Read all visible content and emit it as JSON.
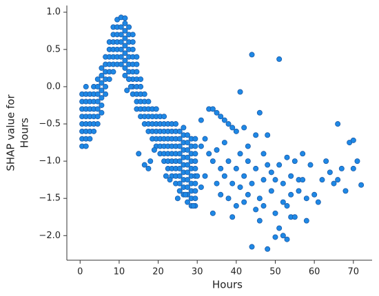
{
  "chart_data": {
    "type": "scatter",
    "xlabel": "Hours",
    "ylabel": [
      "SHAP value for",
      "Hours"
    ],
    "color": "#1e88e5",
    "edgecolor": "#1a5aa8",
    "xlim": [
      -3.4,
      74.8
    ],
    "ylim": [
      -2.33,
      1.09
    ],
    "xticks": [
      0,
      10,
      20,
      30,
      40,
      50,
      60,
      70
    ],
    "yticks": [
      {
        "value": -2.0,
        "label": "−2.0"
      },
      {
        "value": -1.5,
        "label": "−1.5"
      },
      {
        "value": -1.0,
        "label": "−1.0"
      },
      {
        "value": -0.5,
        "label": "−0.5"
      },
      {
        "value": 0.0,
        "label": "0.0"
      },
      {
        "value": 0.5,
        "label": "0.5"
      },
      {
        "value": 1.0,
        "label": "1.0"
      }
    ],
    "x": [
      0.5,
      0.5,
      0.5,
      0.5,
      0.5,
      0.5,
      0.5,
      0.5,
      1.5,
      1.5,
      1.5,
      1.5,
      1.5,
      1.5,
      1.5,
      1.5,
      1.5,
      2.5,
      2.5,
      2.5,
      2.5,
      2.5,
      2.5,
      2.5,
      3.5,
      3.5,
      3.5,
      3.5,
      3.5,
      3.5,
      3.5,
      4.5,
      4.5,
      4.5,
      4.5,
      4.5,
      4.5,
      4.5,
      5.5,
      5.5,
      5.5,
      5.5,
      5.5,
      5.5,
      5.5,
      6.5,
      6.5,
      6.5,
      6.5,
      6.5,
      6.5,
      7.5,
      7.5,
      7.5,
      7.5,
      7.5,
      7.5,
      8.5,
      8.5,
      8.5,
      8.5,
      8.5,
      8.5,
      8.5,
      9.5,
      9.5,
      9.5,
      9.5,
      9.5,
      9.5,
      9.5,
      10.5,
      10.5,
      10.5,
      10.5,
      10.5,
      10.5,
      10.5,
      11.5,
      11.5,
      11.5,
      11.5,
      11.5,
      11.5,
      11.5,
      11.5,
      12.5,
      12.5,
      12.5,
      12.5,
      12.5,
      12.5,
      12.5,
      12.5,
      13.5,
      13.5,
      13.5,
      13.5,
      13.5,
      13.5,
      13.5,
      13.5,
      13.5,
      14.5,
      14.5,
      14.5,
      14.5,
      14.5,
      14.5,
      14.5,
      14.5,
      15.5,
      15.5,
      15.5,
      15.5,
      15.5,
      15.5,
      16.5,
      16.5,
      16.5,
      16.5,
      16.5,
      17.5,
      17.5,
      17.5,
      17.5,
      17.5,
      18.5,
      18.5,
      18.5,
      18.5,
      18.5,
      19.5,
      19.5,
      19.5,
      19.5,
      19.5,
      19.5,
      20.5,
      20.5,
      20.5,
      20.5,
      20.5,
      20.5,
      21.5,
      21.5,
      21.5,
      21.5,
      21.5,
      21.5,
      21.5,
      22.5,
      22.5,
      22.5,
      22.5,
      22.5,
      22.5,
      22.5,
      23.5,
      23.5,
      23.5,
      23.5,
      23.5,
      23.5,
      23.5,
      23.5,
      24.5,
      24.5,
      24.5,
      24.5,
      24.5,
      24.5,
      24.5,
      24.5,
      24.5,
      25.5,
      25.5,
      25.5,
      25.5,
      25.5,
      25.5,
      25.5,
      25.5,
      25.5,
      26.5,
      26.5,
      26.5,
      26.5,
      26.5,
      26.5,
      26.5,
      26.5,
      26.5,
      26.5,
      27.5,
      27.5,
      27.5,
      27.5,
      27.5,
      27.5,
      27.5,
      27.5,
      27.5,
      27.5,
      28.5,
      28.5,
      28.5,
      28.5,
      28.5,
      28.5,
      28.5,
      28.5,
      28.5,
      28.5,
      29.5,
      29.5,
      29.5,
      29.5,
      29.5,
      29.5,
      29.5,
      29.5,
      29.5,
      29.5,
      11.5,
      12.5,
      13,
      12,
      15,
      16.5,
      17.5,
      18,
      19,
      22,
      23,
      25,
      27,
      29,
      44,
      51,
      41,
      31,
      33,
      34,
      35,
      36,
      37,
      38,
      39,
      40,
      46,
      31,
      32,
      33,
      34,
      35,
      36,
      37,
      38,
      39,
      40,
      41,
      42,
      43,
      44,
      45,
      46,
      47,
      48,
      49,
      50,
      51,
      52,
      53,
      54,
      55,
      56,
      57,
      58,
      44,
      48,
      50,
      52,
      46,
      45,
      43,
      47,
      49,
      53,
      54,
      56,
      59,
      60,
      61,
      62,
      63,
      64,
      65,
      66,
      67,
      68,
      69,
      70,
      71,
      72,
      70,
      66,
      42,
      41,
      40,
      39,
      38,
      36,
      35,
      34,
      32,
      31,
      30,
      47,
      48,
      50,
      52,
      54,
      57,
      58,
      55,
      53,
      51,
      45,
      43,
      42,
      37
    ],
    "y": [
      -0.8,
      -0.7,
      -0.6,
      -0.5,
      -0.4,
      -0.3,
      -0.2,
      -0.1,
      -0.8,
      -0.7,
      -0.6,
      -0.5,
      -0.4,
      -0.3,
      -0.2,
      -0.1,
      0.0,
      -0.7,
      -0.6,
      -0.5,
      -0.4,
      -0.3,
      -0.2,
      -0.1,
      -0.6,
      -0.5,
      -0.4,
      -0.3,
      -0.2,
      -0.1,
      0.0,
      -0.5,
      -0.4,
      -0.3,
      -0.2,
      -0.1,
      0.0,
      0.1,
      -0.35,
      -0.25,
      -0.15,
      -0.05,
      0.05,
      0.15,
      0.25,
      -0.1,
      0.0,
      0.1,
      0.2,
      0.3,
      0.4,
      0.1,
      0.2,
      0.3,
      0.4,
      0.5,
      0.6,
      0.2,
      0.3,
      0.4,
      0.5,
      0.6,
      0.7,
      0.8,
      0.3,
      0.4,
      0.5,
      0.6,
      0.7,
      0.8,
      0.9,
      0.3,
      0.4,
      0.5,
      0.6,
      0.7,
      0.8,
      0.93,
      0.25,
      0.35,
      0.45,
      0.55,
      0.65,
      0.75,
      0.85,
      0.92,
      0.1,
      0.2,
      0.3,
      0.4,
      0.5,
      0.6,
      0.7,
      0.8,
      -0.1,
      0.0,
      0.1,
      0.2,
      0.3,
      0.4,
      0.5,
      0.6,
      0.7,
      -0.3,
      -0.2,
      -0.1,
      0.0,
      0.1,
      0.2,
      0.3,
      0.4,
      -0.4,
      -0.3,
      -0.2,
      -0.1,
      0.0,
      0.1,
      -0.5,
      -0.4,
      -0.3,
      -0.2,
      -0.1,
      -0.6,
      -0.5,
      -0.4,
      -0.3,
      -0.2,
      -0.7,
      -0.6,
      -0.5,
      -0.4,
      -0.3,
      -0.8,
      -0.7,
      -0.6,
      -0.5,
      -0.4,
      -0.3,
      -0.9,
      -0.8,
      -0.7,
      -0.6,
      -0.5,
      -0.4,
      -1.0,
      -0.9,
      -0.8,
      -0.7,
      -0.6,
      -0.5,
      -0.4,
      -1.1,
      -1.0,
      -0.9,
      -0.8,
      -0.7,
      -0.6,
      -0.5,
      -1.2,
      -1.1,
      -1.0,
      -0.9,
      -0.8,
      -0.7,
      -0.6,
      -0.5,
      -1.3,
      -1.2,
      -1.1,
      -1.0,
      -0.9,
      -0.8,
      -0.7,
      -0.6,
      -0.5,
      -1.4,
      -1.3,
      -1.2,
      -1.1,
      -1.0,
      -0.9,
      -0.8,
      -0.7,
      -0.6,
      -1.45,
      -1.35,
      -1.25,
      -1.15,
      -1.05,
      -0.95,
      -0.85,
      -0.75,
      -0.65,
      -0.55,
      -1.55,
      -1.45,
      -1.35,
      -1.25,
      -1.15,
      -1.05,
      -0.95,
      -0.85,
      -0.75,
      -0.65,
      -1.6,
      -1.5,
      -1.4,
      -1.3,
      -1.2,
      -1.1,
      -1.0,
      -0.9,
      -0.8,
      -0.7,
      -1.6,
      -1.5,
      -1.4,
      -1.3,
      -1.2,
      -1.1,
      -1.0,
      -0.9,
      -0.8,
      -0.7,
      0.15,
      0.1,
      0.0,
      -0.05,
      -0.9,
      -1.05,
      -1.1,
      -1.0,
      -0.85,
      -1.2,
      -1.25,
      -1.5,
      -1.45,
      -1.6,
      0.43,
      0.37,
      -0.07,
      -0.45,
      -0.3,
      -0.3,
      -0.35,
      -0.4,
      -0.45,
      -0.5,
      -0.55,
      -0.6,
      -0.35,
      -0.8,
      -0.7,
      -0.9,
      -1.0,
      -0.85,
      -1.1,
      -0.75,
      -1.0,
      -1.3,
      -1.1,
      -0.9,
      -1.2,
      -1.0,
      -1.3,
      -1.1,
      -1.5,
      -1.25,
      -0.65,
      -1.4,
      -1.7,
      -1.9,
      -1.3,
      -1.6,
      -1.2,
      -1.0,
      -1.4,
      -0.9,
      -1.8,
      -2.15,
      -2.18,
      -2.02,
      -2.0,
      -1.8,
      -1.65,
      -1.45,
      -1.6,
      -1.15,
      -0.95,
      -1.75,
      -1.25,
      -1.05,
      -1.45,
      -1.55,
      -1.25,
      -1.0,
      -1.15,
      -1.3,
      -0.5,
      -1.1,
      -1.4,
      -0.75,
      -0.72,
      -1.0,
      -1.32,
      -1.1,
      -1.25,
      -1.55,
      -1.35,
      -1.6,
      -1.75,
      -1.5,
      -1.45,
      -1.3,
      -1.7,
      -1.2,
      -1.35,
      -1.2,
      -0.9,
      -1.05,
      -1.25,
      -1.55,
      -1.45,
      -1.25,
      -1.5,
      -1.75,
      -2.05,
      -1.05,
      -0.65,
      -0.8,
      -0.55,
      -1.2
    ]
  }
}
